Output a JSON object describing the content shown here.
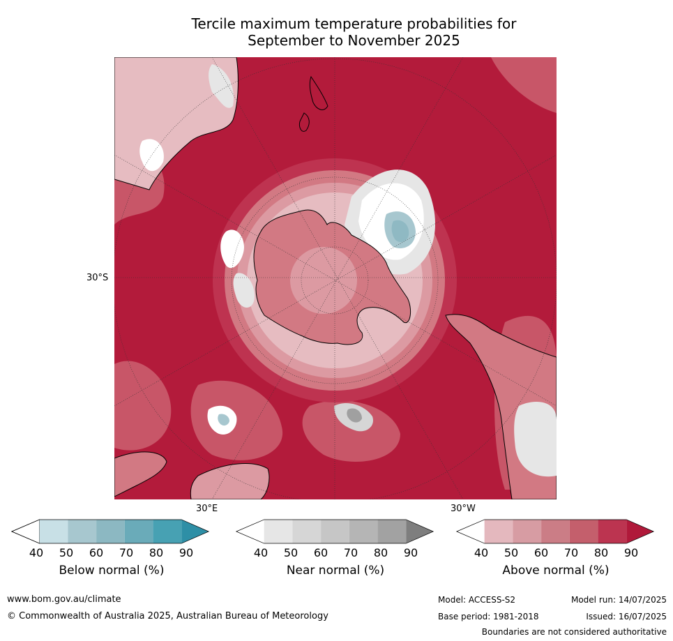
{
  "title_line1": "Tercile maximum temperature probabilities for",
  "title_line2": "September to November 2025",
  "map": {
    "lat_label": "30°S",
    "lon_label_east": "30°E",
    "lon_label_west": "30°W",
    "colors": {
      "above_90": "#b31b3b",
      "above_80": "#be3350",
      "above_70": "#c85668",
      "above_60": "#d27983",
      "above_50": "#dc9aa2",
      "above_40": "#e6bcc1",
      "near_40": "#e6e6e6",
      "near_80": "#a0a0a0",
      "below_50": "#a7c7cf",
      "below_60": "#8fb9c3",
      "below_70": "#6eaab7",
      "land_outline": "#000000"
    }
  },
  "legends": [
    {
      "name": "Below normal (%)",
      "ticks": [
        "40",
        "50",
        "60",
        "70",
        "80",
        "90"
      ],
      "colors": [
        "#ffffff",
        "#c8e0e6",
        "#a7c7cf",
        "#8cb8c2",
        "#6aabb9",
        "#47a1b3",
        "#2e8fa6"
      ]
    },
    {
      "name": "Near normal (%)",
      "ticks": [
        "40",
        "50",
        "60",
        "70",
        "80",
        "90"
      ],
      "colors": [
        "#ffffff",
        "#e6e6e6",
        "#d6d6d6",
        "#c6c6c6",
        "#b5b5b5",
        "#a2a2a2",
        "#7e7e7e"
      ]
    },
    {
      "name": "Above normal (%)",
      "ticks": [
        "40",
        "50",
        "60",
        "70",
        "80",
        "90"
      ],
      "colors": [
        "#ffffff",
        "#e4b8be",
        "#d79ca3",
        "#cb7d86",
        "#c45f6c",
        "#bc3450",
        "#b0193a"
      ]
    }
  ],
  "footer": {
    "website": "www.bom.gov.au/climate",
    "copyright": "© Commonwealth of Australia 2025, Australian Bureau of Meteorology",
    "model": "Model: ACCESS-S2",
    "model_run": "Model run: 14/07/2025",
    "base_period": "Base period: 1981-2018",
    "issued": "Issued: 16/07/2025",
    "disclaimer": "Boundaries are not considered authoritative"
  }
}
